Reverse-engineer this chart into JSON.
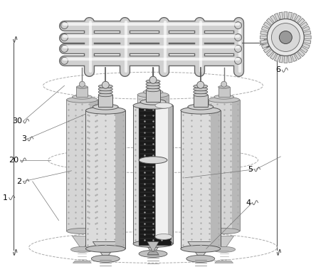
{
  "bg_color": "#ffffff",
  "lc": "#555555",
  "lc_dark": "#333333",
  "lc_light": "#999999",
  "lc_mid": "#777777",
  "pipe_color": "#888888",
  "pipe_fill": "#d8d8d8",
  "pipe_top": "#c8c8c8",
  "gear_fill": "#e8e8e8",
  "gear_dark": "#444444",
  "dashed_color": "#aaaaaa",
  "membrane_dark": "#222222",
  "membrane_mid": "#555555",
  "figsize": [
    4.44,
    3.75
  ],
  "dpi": 100,
  "xlim": [
    0,
    444
  ],
  "ylim": [
    0,
    375
  ]
}
